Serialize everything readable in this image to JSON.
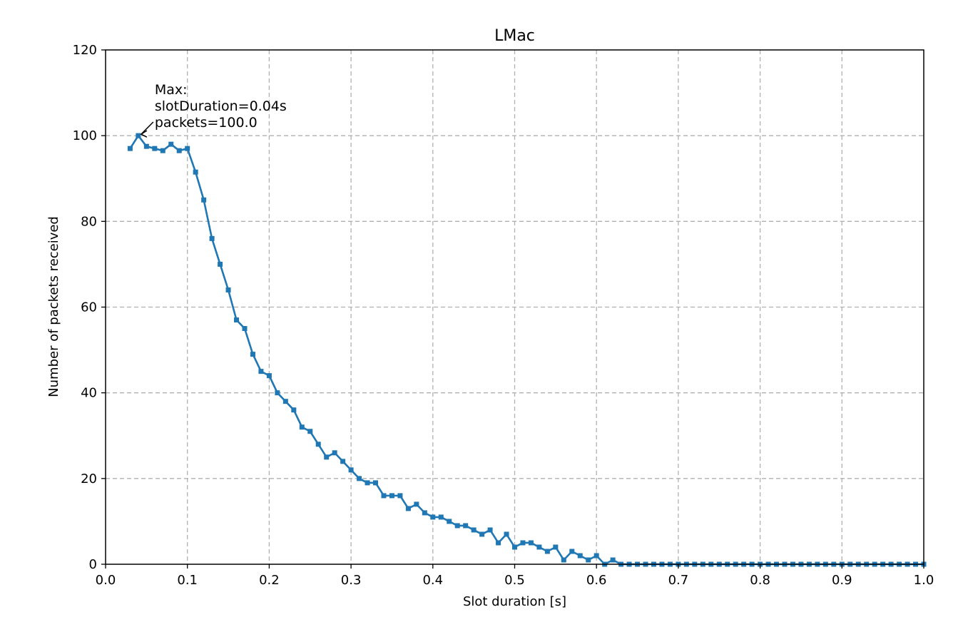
{
  "chart_data": {
    "type": "line",
    "title": "LMac",
    "xlabel": "Slot duration [s]",
    "ylabel": "Number of packets received",
    "xlim": [
      0.0,
      1.0
    ],
    "ylim": [
      0,
      120
    ],
    "xticks": [
      "0.0",
      "0.1",
      "0.2",
      "0.3",
      "0.4",
      "0.5",
      "0.6",
      "0.7",
      "0.8",
      "0.9",
      "1.0"
    ],
    "yticks": [
      "0",
      "20",
      "40",
      "60",
      "80",
      "100",
      "120"
    ],
    "grid": true,
    "line_color": "#1f77b4",
    "marker": "square",
    "series": [
      {
        "x": [
          0.03,
          0.04,
          0.05,
          0.06,
          0.07,
          0.08,
          0.09,
          0.1,
          0.11,
          0.12,
          0.13,
          0.14,
          0.15,
          0.16,
          0.17,
          0.18,
          0.19,
          0.2,
          0.21,
          0.22,
          0.23,
          0.24,
          0.25,
          0.26,
          0.27,
          0.28,
          0.29,
          0.3,
          0.31,
          0.32,
          0.33,
          0.34,
          0.35,
          0.36,
          0.37,
          0.38,
          0.39,
          0.4,
          0.41,
          0.42,
          0.43,
          0.44,
          0.45,
          0.46,
          0.47,
          0.48,
          0.49,
          0.5,
          0.51,
          0.52,
          0.53,
          0.54,
          0.55,
          0.56,
          0.57,
          0.58,
          0.59,
          0.6,
          0.61,
          0.62,
          0.63,
          0.64,
          0.65,
          0.66,
          0.67,
          0.68,
          0.69,
          0.7,
          0.71,
          0.72,
          0.73,
          0.74,
          0.75,
          0.76,
          0.77,
          0.78,
          0.79,
          0.8,
          0.81,
          0.82,
          0.83,
          0.84,
          0.85,
          0.86,
          0.87,
          0.88,
          0.89,
          0.9,
          0.91,
          0.92,
          0.93,
          0.94,
          0.95,
          0.96,
          0.97,
          0.98,
          0.99,
          1.0
        ],
        "y": [
          97,
          100,
          97.5,
          97,
          96.5,
          98,
          96.5,
          97,
          91.5,
          85,
          76,
          70,
          64,
          57,
          55,
          49,
          45,
          44,
          40,
          38,
          36,
          32,
          31,
          28,
          25,
          26,
          24,
          22,
          20,
          19,
          19,
          16,
          16,
          16,
          13,
          14,
          12,
          11,
          11,
          10,
          9,
          9,
          8,
          7,
          8,
          5,
          7,
          4,
          5,
          5,
          4,
          3,
          4,
          1,
          3,
          2,
          1,
          2,
          0,
          1,
          0,
          0,
          0,
          0,
          0,
          0,
          0,
          0,
          0,
          0,
          0,
          0,
          0,
          0,
          0,
          0,
          0,
          0,
          0,
          0,
          0,
          0,
          0,
          0,
          0,
          0,
          0,
          0,
          0,
          0,
          0,
          0,
          0,
          0,
          0,
          0,
          0,
          0
        ]
      }
    ],
    "annotation": {
      "lines": [
        "Max:",
        "slotDuration=0.04s",
        "packets=100.0"
      ],
      "x": 0.04,
      "y": 100
    }
  }
}
